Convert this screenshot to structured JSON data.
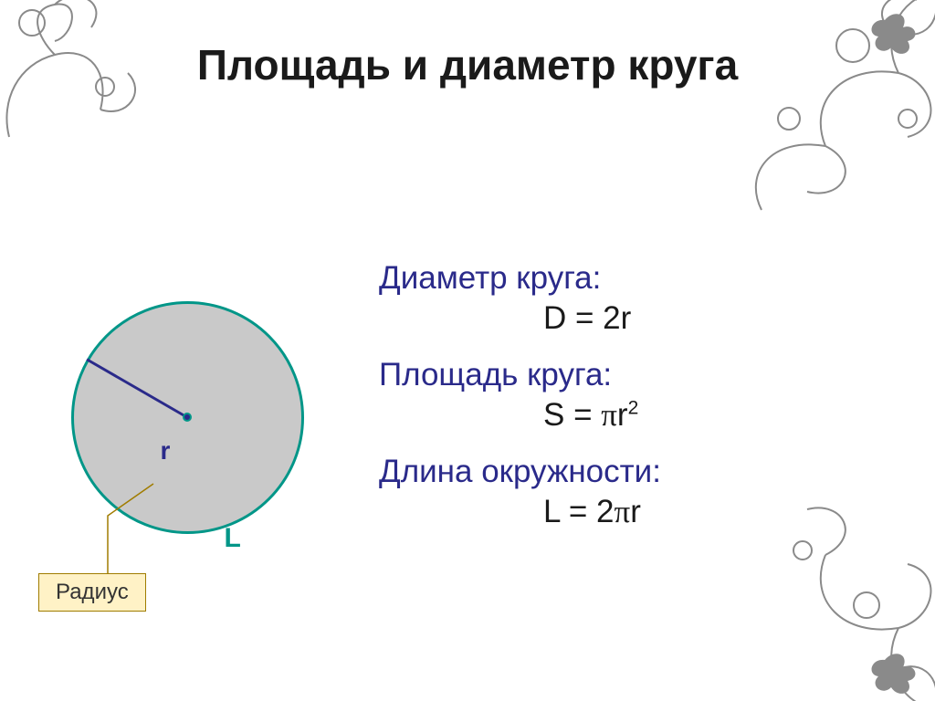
{
  "title": {
    "text": "Площадь и диаметр круга",
    "fontsize": 46
  },
  "circle": {
    "fill": "#c9c9c9",
    "stroke": "#009688",
    "stroke_width": 3,
    "radius_line_color": "#2a2a8a",
    "radius_line_angle_deg": 210,
    "center_dot_fill": "#2a2a8a",
    "label_r": "r",
    "label_L": "L"
  },
  "radius_box": {
    "text": "Радиус",
    "bg": "#fff2c6",
    "border": "#a07c00",
    "fontsize": 24,
    "color": "#333"
  },
  "ornament_color": "#8a8a8a",
  "formulas": {
    "diameter": {
      "head": "Диаметр круга:",
      "body": "D = 2r"
    },
    "area": {
      "head": "Площадь круга:",
      "body_pre": "S = ",
      "body_pi": "π",
      "body_post": "r",
      "sup": "2"
    },
    "circumference": {
      "head": "Длина окружности:",
      "body_pre": "L = 2",
      "body_pi": "π",
      "body_post": "r"
    },
    "head_fontsize": 35,
    "body_fontsize": 35
  }
}
